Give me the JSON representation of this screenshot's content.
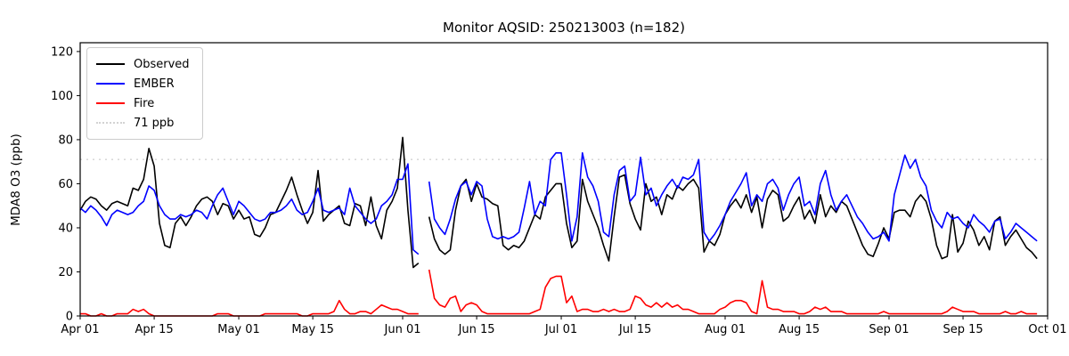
{
  "title": "Monitor AQSID: 250213003 (n=182)",
  "colors": {
    "observed": "#000000",
    "ember": "#0000ff",
    "fire": "#ff0000",
    "threshold": "#d3d3d3",
    "axis": "#000000"
  },
  "legend": {
    "items": [
      {
        "label": "Observed",
        "color": "#000000",
        "style": "solid"
      },
      {
        "label": "EMBER",
        "color": "#0000ff",
        "style": "solid"
      },
      {
        "label": "Fire",
        "color": "#ff0000",
        "style": "solid"
      },
      {
        "label": "71 ppb",
        "color": "#d3d3d3",
        "style": "dotted"
      }
    ]
  },
  "chart_data": {
    "type": "line",
    "title": "Monitor AQSID: 250213003 (n=182)",
    "xlabel": "",
    "ylabel": "MDA8 O3 (ppb)",
    "ylim": [
      0,
      124
    ],
    "grid": false,
    "legend_position": "upper left",
    "threshold_ppb": 71,
    "n_points": 182,
    "x_start": "Apr 01",
    "x_end": "Sep 29",
    "x_days_span": 183,
    "x_ticks": [
      {
        "label": "Apr 01",
        "day": 0
      },
      {
        "label": "Apr 15",
        "day": 14
      },
      {
        "label": "May 01",
        "day": 30
      },
      {
        "label": "May 15",
        "day": 44
      },
      {
        "label": "Jun 01",
        "day": 61
      },
      {
        "label": "Jun 15",
        "day": 75
      },
      {
        "label": "Jul 01",
        "day": 91
      },
      {
        "label": "Jul 15",
        "day": 105
      },
      {
        "label": "Aug 01",
        "day": 122
      },
      {
        "label": "Aug 15",
        "day": 136
      },
      {
        "label": "Sep 01",
        "day": 153
      },
      {
        "label": "Sep 15",
        "day": 167
      },
      {
        "label": "Oct 01",
        "day": 183
      }
    ],
    "y_ticks": [
      0,
      20,
      40,
      60,
      80,
      100,
      120
    ],
    "series": [
      {
        "name": "Observed",
        "color": "#000000",
        "values": [
          48,
          52,
          54,
          53,
          50,
          48,
          51,
          52,
          51,
          50,
          58,
          57,
          62,
          76,
          68,
          42,
          32,
          31,
          42,
          45,
          41,
          45,
          50,
          53,
          54,
          52,
          46,
          51,
          50,
          44,
          48,
          44,
          45,
          37,
          36,
          40,
          46,
          47,
          52,
          57,
          63,
          55,
          48,
          42,
          47,
          66,
          43,
          46,
          48,
          50,
          42,
          41,
          51,
          50,
          41,
          54,
          41,
          35,
          48,
          52,
          58,
          81,
          48,
          22,
          24,
          null,
          45,
          35,
          30,
          28,
          30,
          48,
          59,
          62,
          52,
          60,
          54,
          53,
          51,
          50,
          32,
          30,
          32,
          31,
          34,
          40,
          46,
          44,
          54,
          57,
          60,
          60,
          42,
          31,
          34,
          62,
          52,
          46,
          40,
          32,
          25,
          45,
          63,
          64,
          51,
          44,
          39,
          60,
          52,
          54,
          46,
          55,
          53,
          59,
          57,
          60,
          62,
          58,
          29,
          34,
          32,
          37,
          46,
          50,
          53,
          49,
          55,
          47,
          54,
          40,
          53,
          57,
          55,
          43,
          45,
          50,
          54,
          44,
          48,
          42,
          55,
          45,
          50,
          47,
          52,
          50,
          44,
          38,
          32,
          28,
          27,
          33,
          40,
          35,
          47,
          48,
          48,
          45,
          52,
          55,
          52,
          44,
          32,
          26,
          27,
          46,
          29,
          33,
          43,
          39,
          32,
          36,
          30,
          43,
          45,
          32,
          36,
          39,
          35,
          31,
          29,
          26
        ]
      },
      {
        "name": "EMBER",
        "color": "#0000ff",
        "values": [
          49,
          47,
          50,
          48,
          45,
          41,
          46,
          48,
          47,
          46,
          47,
          50,
          52,
          59,
          57,
          50,
          46,
          44,
          44,
          46,
          45,
          46,
          48,
          47,
          44,
          50,
          55,
          58,
          52,
          46,
          52,
          50,
          47,
          44,
          43,
          44,
          47,
          47,
          48,
          50,
          53,
          48,
          46,
          47,
          52,
          58,
          48,
          47,
          48,
          49,
          46,
          58,
          50,
          47,
          44,
          42,
          44,
          50,
          52,
          55,
          62,
          62,
          69,
          30,
          28,
          null,
          61,
          44,
          40,
          37,
          44,
          53,
          59,
          61,
          55,
          61,
          59,
          44,
          36,
          35,
          36,
          35,
          36,
          38,
          49,
          61,
          46,
          52,
          50,
          71,
          74,
          74,
          55,
          34,
          45,
          74,
          63,
          59,
          52,
          38,
          36,
          55,
          66,
          68,
          52,
          55,
          72,
          55,
          58,
          50,
          55,
          59,
          62,
          58,
          63,
          62,
          64,
          71,
          38,
          34,
          37,
          41,
          46,
          52,
          56,
          60,
          65,
          50,
          55,
          52,
          60,
          62,
          58,
          48,
          55,
          60,
          63,
          50,
          52,
          46,
          60,
          66,
          55,
          48,
          52,
          55,
          50,
          45,
          42,
          38,
          35,
          36,
          38,
          34,
          55,
          64,
          73,
          67,
          71,
          63,
          59,
          48,
          43,
          40,
          47,
          44,
          45,
          42,
          40,
          46,
          43,
          41,
          38,
          43,
          44,
          35,
          38,
          42,
          40,
          38,
          36,
          34
        ]
      },
      {
        "name": "Fire",
        "color": "#ff0000",
        "values": [
          1,
          1,
          0,
          0,
          1,
          0,
          0,
          1,
          1,
          1,
          3,
          2,
          3,
          1,
          0,
          0,
          0,
          0,
          0,
          0,
          0,
          0,
          0,
          0,
          0,
          0,
          1,
          1,
          1,
          0,
          0,
          0,
          0,
          0,
          0,
          1,
          1,
          1,
          1,
          1,
          1,
          1,
          0,
          0,
          1,
          1,
          1,
          1,
          2,
          7,
          3,
          1,
          1,
          2,
          2,
          1,
          3,
          5,
          4,
          3,
          3,
          2,
          1,
          1,
          1,
          null,
          21,
          8,
          5,
          4,
          8,
          9,
          2,
          5,
          6,
          5,
          2,
          1,
          1,
          1,
          1,
          1,
          1,
          1,
          1,
          1,
          2,
          3,
          13,
          17,
          18,
          18,
          6,
          9,
          2,
          3,
          3,
          2,
          2,
          3,
          2,
          3,
          2,
          2,
          3,
          9,
          8,
          5,
          4,
          6,
          4,
          6,
          4,
          5,
          3,
          3,
          2,
          1,
          1,
          1,
          1,
          3,
          4,
          6,
          7,
          7,
          6,
          2,
          1,
          16,
          4,
          3,
          3,
          2,
          2,
          2,
          1,
          1,
          2,
          4,
          3,
          4,
          2,
          2,
          2,
          1,
          1,
          1,
          1,
          1,
          1,
          1,
          2,
          1,
          1,
          1,
          1,
          1,
          1,
          1,
          1,
          1,
          1,
          1,
          2,
          4,
          3,
          2,
          2,
          2,
          1,
          1,
          1,
          1,
          1,
          2,
          1,
          1,
          2,
          1,
          1,
          1
        ]
      }
    ]
  }
}
